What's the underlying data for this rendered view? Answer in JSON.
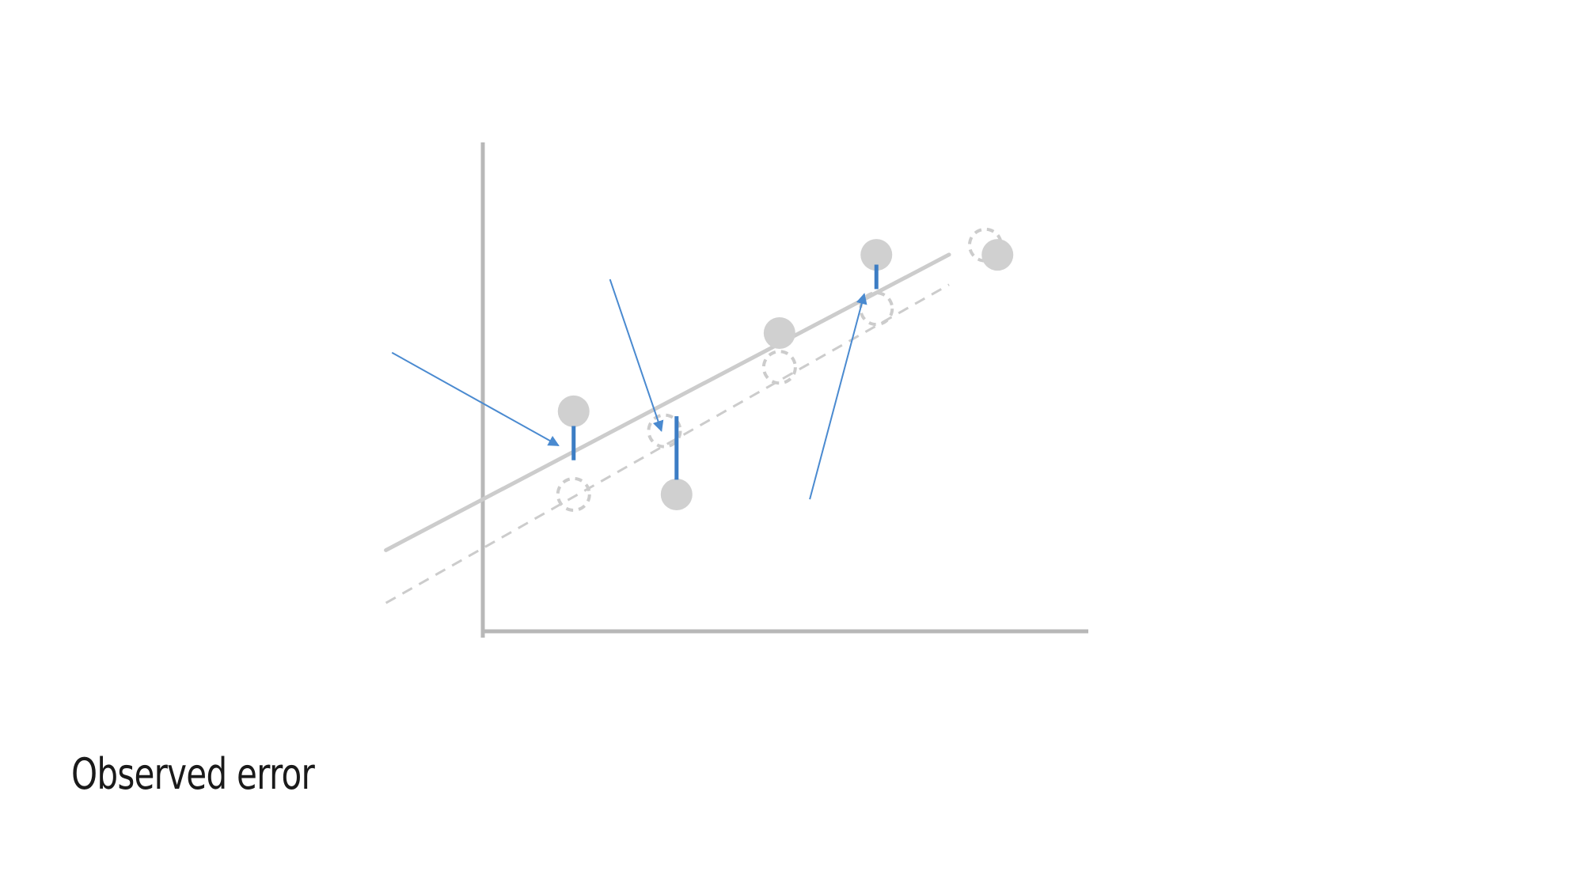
{
  "caption": "Observed error",
  "colors": {
    "axis": "#b8b8b8",
    "point": "#d0d0d0",
    "line": "#cccccc",
    "error": "#3c7dc4",
    "arrow": "#4a8ad0",
    "text": "#1a1a1a"
  },
  "chart_data": {
    "type": "scatter",
    "title": "",
    "xlabel": "",
    "ylabel": "",
    "xlim": [
      0,
      10
    ],
    "ylim": [
      0,
      10
    ],
    "grid": false,
    "observed_points": [
      {
        "x": 1.5,
        "y": 4.5
      },
      {
        "x": 3.2,
        "y": 2.8
      },
      {
        "x": 4.9,
        "y": 6.1
      },
      {
        "x": 6.5,
        "y": 7.7
      },
      {
        "x": 8.5,
        "y": 7.7
      }
    ],
    "predicted_points": [
      {
        "x": 1.5,
        "y": 2.8
      },
      {
        "x": 3.0,
        "y": 4.1
      },
      {
        "x": 4.9,
        "y": 5.4
      },
      {
        "x": 6.5,
        "y": 6.6
      },
      {
        "x": 8.3,
        "y": 7.9
      }
    ],
    "fitted_line": {
      "intercept": 2.7,
      "slope": 0.65
    },
    "reference_line": {
      "intercept": 1.7,
      "slope": 0.7
    },
    "error_segments": [
      {
        "x": 1.5,
        "y_from": 4.2,
        "y_to": 3.5
      },
      {
        "x": 3.2,
        "y_from": 4.4,
        "y_to": 3.1
      },
      {
        "x": 6.5,
        "y_from": 7.5,
        "y_to": 7.0
      }
    ],
    "annotation_arrows": [
      {
        "from": [
          -1.5,
          5.7
        ],
        "to": [
          1.25,
          3.8
        ]
      },
      {
        "from": [
          2.1,
          7.2
        ],
        "to": [
          2.95,
          4.1
        ]
      },
      {
        "from": [
          5.4,
          2.7
        ],
        "to": [
          6.3,
          6.9
        ]
      }
    ]
  }
}
